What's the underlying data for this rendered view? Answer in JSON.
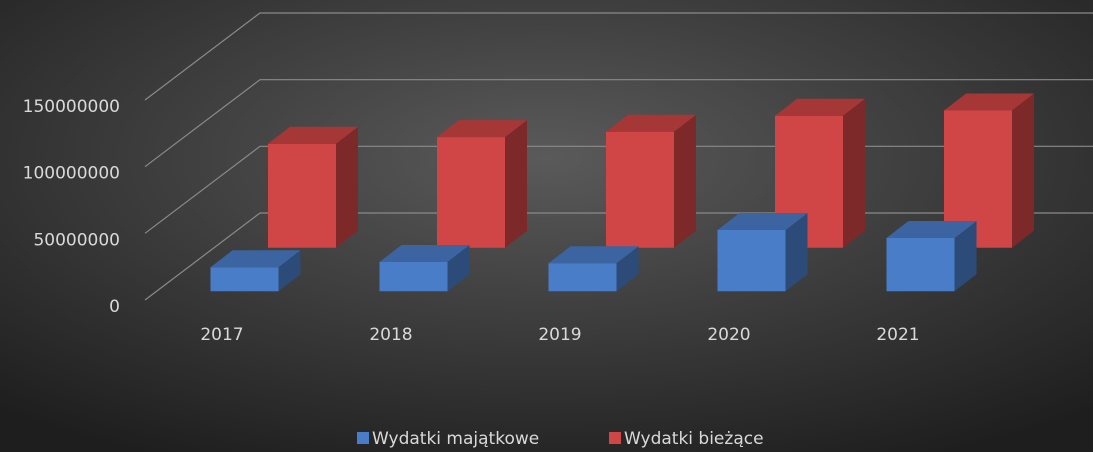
{
  "chart_data": {
    "type": "bar3d",
    "categories": [
      "2017",
      "2018",
      "2019",
      "2020",
      "2021"
    ],
    "series": [
      {
        "name": "Wydatki majątkowe",
        "color": "#4a7dc8",
        "values": [
          18000000,
          22000000,
          21000000,
          46000000,
          40000000
        ]
      },
      {
        "name": "Wydatki bieżące",
        "color": "#d04545",
        "values": [
          78000000,
          83000000,
          87000000,
          99000000,
          103000000
        ]
      }
    ],
    "ylim": [
      0,
      150000000
    ],
    "yticks": [
      0,
      50000000,
      100000000,
      150000000
    ],
    "grid": true,
    "legend": "bottom"
  }
}
